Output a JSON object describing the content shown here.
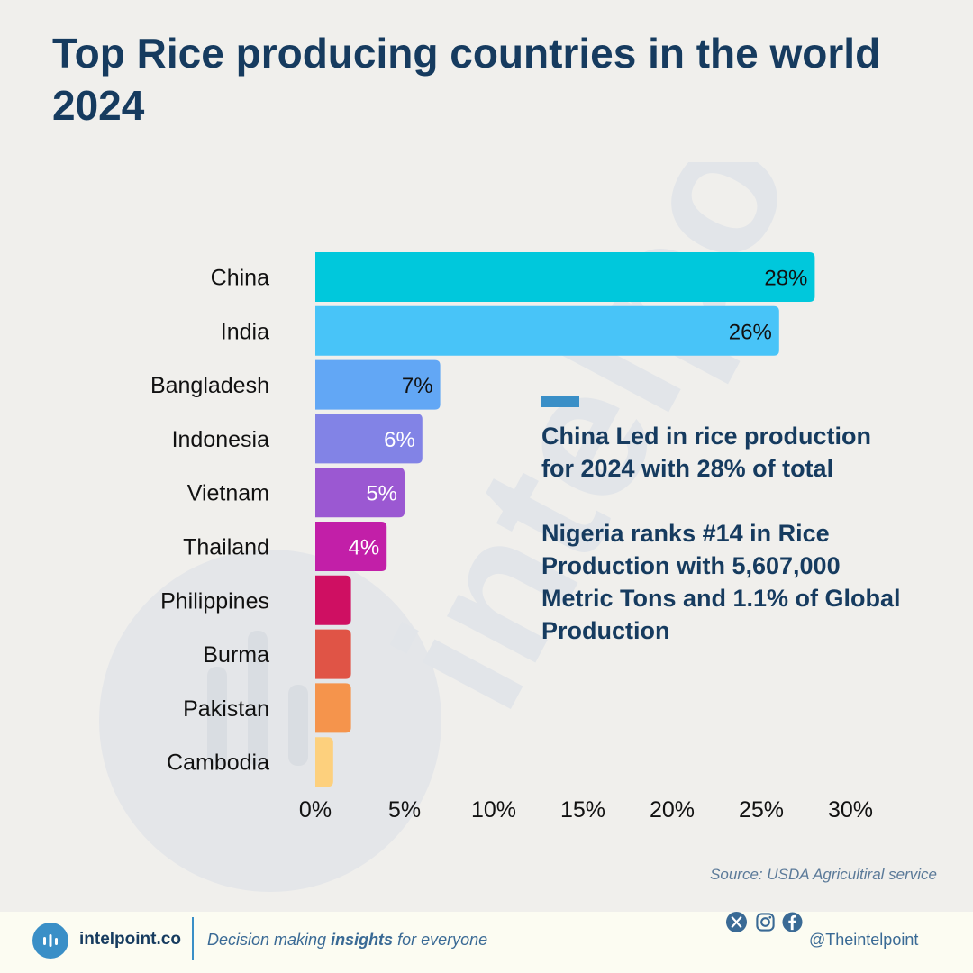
{
  "title": "Top Rice producing countries in the world 2024",
  "chart_data": {
    "type": "bar",
    "orientation": "horizontal",
    "categories": [
      "China",
      "India",
      "Bangladesh",
      "Indonesia",
      "Vietnam",
      "Thailand",
      "Philippines",
      "Burma",
      "Pakistan",
      "Cambodia"
    ],
    "values": [
      28,
      26,
      7,
      6,
      5,
      4,
      2,
      2,
      2,
      1
    ],
    "value_labels": [
      "28%",
      "26%",
      "7%",
      "6%",
      "5%",
      "4%",
      "",
      "",
      "",
      ""
    ],
    "colors": [
      "#00c8dc",
      "#48c4f8",
      "#62a7f5",
      "#8283e6",
      "#9b58d2",
      "#c21fa8",
      "#cf0f62",
      "#e05446",
      "#f5944c",
      "#fdd07d"
    ],
    "label_colors": [
      "#111111",
      "#111111",
      "#111111",
      "#ffffff",
      "#ffffff",
      "#ffffff",
      "",
      "",
      "",
      ""
    ],
    "x_ticks": [
      "0%",
      "5%",
      "10%",
      "15%",
      "20%",
      "25%",
      "30%"
    ],
    "x_tick_values": [
      0,
      5,
      10,
      15,
      20,
      25,
      30
    ],
    "xlim": [
      0,
      30
    ],
    "unit": "%"
  },
  "annotation": {
    "line1": "China Led in rice production for 2024 with 28% of total",
    "line2": "Nigeria ranks #14 in Rice Production with 5,607,000 Metric Tons and 1.1% of Global Production",
    "accent_color": "#3a8fc7"
  },
  "source": "Source: USDA Agricultiral service",
  "footer": {
    "brand": "intelpoint.co",
    "tagline_pre": "Decision making ",
    "tagline_bold": "insights",
    "tagline_post": " for everyone",
    "handle": "@Theintelpoint",
    "social_icons": [
      "x-icon",
      "instagram-icon",
      "facebook-icon"
    ]
  }
}
